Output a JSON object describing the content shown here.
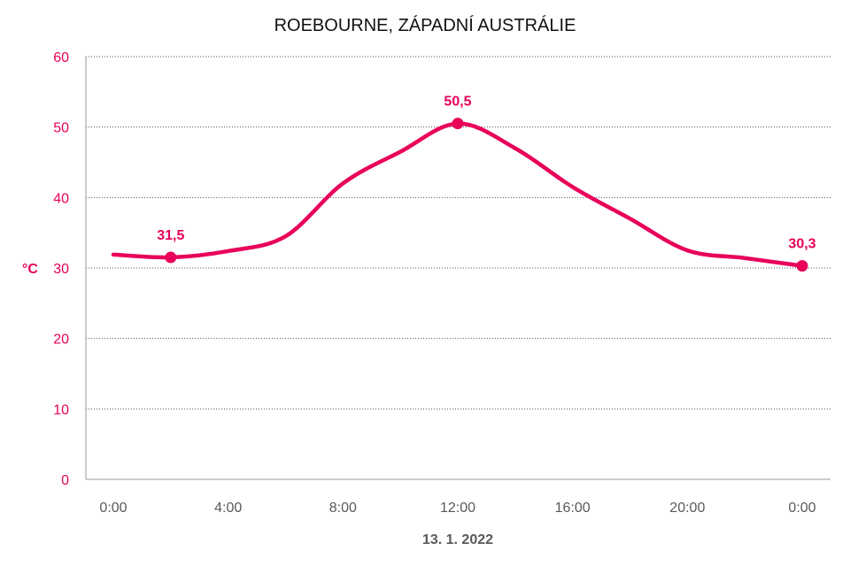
{
  "chart_data": {
    "type": "line",
    "title": "ROEBOURNE, ZÁPADNÍ AUSTRÁLIE",
    "ylabel": "°C",
    "xlabel": "13. 1. 2022",
    "ylim": [
      0,
      60
    ],
    "yticks": [
      "0",
      "10",
      "20",
      "30",
      "40",
      "50",
      "60"
    ],
    "xticks": [
      "0:00",
      "4:00",
      "8:00",
      "12:00",
      "16:00",
      "20:00",
      "0:00"
    ],
    "grid": true,
    "color": "#e8005a",
    "series": [
      {
        "x_hours": [
          0,
          2,
          4,
          6,
          8,
          10,
          12,
          14,
          16,
          18,
          20,
          22,
          24
        ],
        "values": [
          31.9,
          31.5,
          32.4,
          34.5,
          42.0,
          46.5,
          50.5,
          47.0,
          41.5,
          37.0,
          32.5,
          31.4,
          30.3
        ]
      }
    ],
    "markers": [
      {
        "hour": 2,
        "value": 31.5,
        "label": "31,5"
      },
      {
        "hour": 12,
        "value": 50.5,
        "label": "50,5"
      },
      {
        "hour": 24,
        "value": 30.3,
        "label": "30,3"
      }
    ]
  }
}
